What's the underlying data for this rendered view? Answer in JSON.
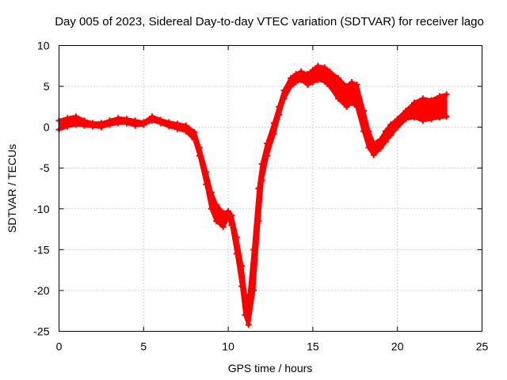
{
  "chart_data": {
    "type": "line",
    "title": "Day 005 of 2023, Sidereal Day-to-day VTEC variation (SDTVAR) for receiver lago",
    "xlabel": "GPS time / hours",
    "ylabel": "SDTVAR / TECUs",
    "xlim": [
      0,
      25
    ],
    "ylim": [
      -25,
      10
    ],
    "xticks": [
      0,
      5,
      10,
      15,
      20,
      25
    ],
    "yticks": [
      -25,
      -20,
      -15,
      -10,
      -5,
      0,
      5,
      10
    ],
    "grid": true,
    "marker": "+",
    "color": "#ff0000",
    "series": [
      {
        "name": "upper",
        "x": [
          0,
          0.5,
          1.0,
          1.5,
          2.0,
          2.5,
          3.0,
          3.5,
          4.0,
          4.5,
          5.0,
          5.5,
          6.0,
          6.5,
          7.0,
          7.5,
          8.0,
          8.3,
          8.7,
          9.0,
          9.3,
          9.7,
          10.0,
          10.2,
          10.5,
          10.8,
          11.0,
          11.2,
          11.5,
          11.8,
          12.0,
          12.3,
          12.7,
          13.0,
          13.3,
          13.7,
          14.0,
          14.3,
          14.7,
          15.0,
          15.3,
          15.7,
          16.0,
          16.5,
          17.0,
          17.3,
          17.6,
          18.0,
          18.3,
          18.6,
          19.0,
          19.3,
          19.6,
          20.0,
          20.5,
          21.0,
          21.5,
          22.0,
          22.5,
          22.9
        ],
        "values": [
          0.8,
          1.1,
          1.3,
          0.8,
          0.5,
          0.5,
          0.8,
          1.1,
          1.0,
          0.8,
          0.6,
          1.3,
          0.9,
          0.6,
          0.4,
          0.2,
          -0.6,
          -2.5,
          -5.5,
          -8.0,
          -9.5,
          -10.5,
          -10.3,
          -10.8,
          -13.5,
          -17.0,
          -20.5,
          -21.5,
          -15.0,
          -7.5,
          -4.5,
          -2.0,
          0.5,
          2.5,
          4.5,
          6.0,
          6.5,
          6.8,
          6.5,
          7.0,
          7.5,
          7.3,
          6.8,
          6.0,
          5.0,
          5.5,
          5.2,
          2.0,
          -0.5,
          -2.0,
          -1.5,
          -0.5,
          0.3,
          1.0,
          2.0,
          3.0,
          3.5,
          3.3,
          3.8,
          4.0
        ]
      },
      {
        "name": "lower",
        "x": [
          0,
          0.5,
          1.0,
          1.5,
          2.0,
          2.5,
          3.0,
          3.5,
          4.0,
          4.5,
          5.0,
          5.5,
          6.0,
          6.5,
          7.0,
          7.5,
          8.0,
          8.3,
          8.7,
          9.0,
          9.3,
          9.7,
          10.0,
          10.2,
          10.5,
          10.8,
          11.0,
          11.2,
          11.5,
          11.8,
          12.0,
          12.3,
          12.7,
          13.0,
          13.3,
          13.7,
          14.0,
          14.3,
          14.7,
          15.0,
          15.3,
          15.7,
          16.0,
          16.5,
          17.0,
          17.3,
          17.6,
          18.0,
          18.3,
          18.6,
          19.0,
          19.3,
          19.6,
          20.0,
          20.5,
          21.0,
          21.5,
          22.0,
          22.5,
          22.9
        ],
        "values": [
          -0.3,
          0.1,
          0.3,
          0.2,
          0.1,
          0.0,
          0.3,
          0.5,
          0.5,
          0.2,
          0.3,
          0.8,
          0.5,
          0.1,
          -0.2,
          -0.5,
          -1.5,
          -3.5,
          -7.0,
          -10.0,
          -11.5,
          -12.2,
          -11.0,
          -12.0,
          -15.5,
          -19.5,
          -23.0,
          -24.2,
          -20.0,
          -11.5,
          -6.5,
          -3.5,
          -0.8,
          1.5,
          3.5,
          5.0,
          5.5,
          5.8,
          5.2,
          5.5,
          5.8,
          5.6,
          5.0,
          3.5,
          2.5,
          3.0,
          2.5,
          -0.5,
          -2.5,
          -3.4,
          -2.6,
          -1.8,
          -1.0,
          0.0,
          1.0,
          1.2,
          0.8,
          1.0,
          1.2,
          1.3
        ]
      }
    ]
  }
}
